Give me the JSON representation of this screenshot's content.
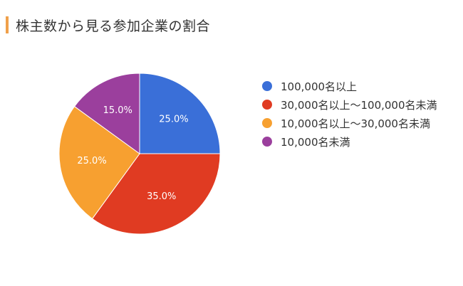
{
  "title": "株主数から見る参加企業の割合",
  "colors": {
    "accent_bar": "#f0a04a"
  },
  "chart_data": {
    "type": "pie",
    "title": "株主数から見る参加企業の割合",
    "legend_position": "right",
    "slices": [
      {
        "label": "100,000名以上",
        "value": 25.0,
        "display": "25.0%",
        "color": "#3a6fd8"
      },
      {
        "label": "30,000名以上〜100,000名未満",
        "value": 35.0,
        "display": "35.0%",
        "color": "#e03b22"
      },
      {
        "label": "10,000名以上〜30,000名未満",
        "value": 25.0,
        "display": "25.0%",
        "color": "#f7a030"
      },
      {
        "label": "10,000名未満",
        "value": 15.0,
        "display": "15.0%",
        "color": "#9b3f9d"
      }
    ]
  }
}
